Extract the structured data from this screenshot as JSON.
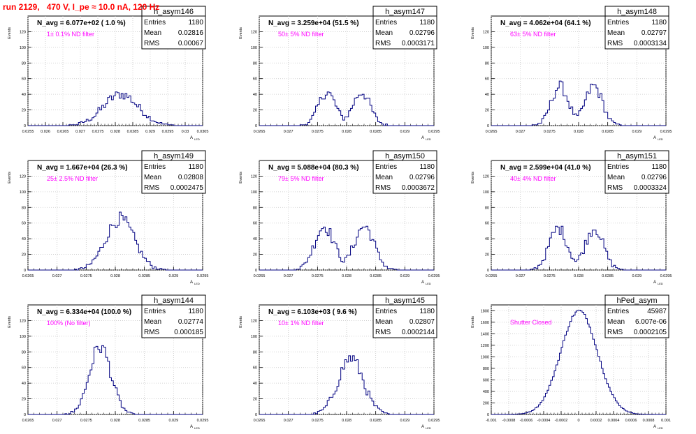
{
  "title": "run 2129,   470 V, I_pe ≈ 10.0 nA, 120 Hz",
  "colors": {
    "hist": "#000080",
    "annotation": "#ff00ff",
    "title": "#ff0000",
    "grid": "#c8c8c8"
  },
  "ylabel": "Events",
  "xlabel": "A",
  "xlabel_sub": "LED",
  "stat_labels": {
    "entries": "Entries",
    "mean": "Mean",
    "rms": "RMS"
  },
  "chart_data": [
    {
      "type": "bar",
      "name": "h_asym146",
      "navg": "N_avg = 6.077e+02 ( 1.0 %)",
      "annotation": "1± 0.1% ND filter",
      "stats": {
        "entries": "1180",
        "mean": "0.02816",
        "rms": "0.00067"
      },
      "xlim": [
        0.0255,
        0.0305
      ],
      "ylim": [
        0,
        140
      ],
      "xticks": [
        "0.0255",
        "0.026",
        "0.0265",
        "0.027",
        "0.0275",
        "0.028",
        "0.0285",
        "0.029",
        "0.0295",
        "0.03",
        "0.0305"
      ],
      "yticks": [
        "0",
        "20",
        "40",
        "60",
        "80",
        "100",
        "120"
      ],
      "hist_mean": 0.02816,
      "hist_sigma": 0.00067,
      "hist_peak": 40,
      "hist_shape": "broad",
      "bins": 90
    },
    {
      "type": "bar",
      "name": "h_asym147",
      "navg": "N_avg = 3.259e+04 (51.5 %)",
      "annotation": "50± 5% ND filter",
      "stats": {
        "entries": "1180",
        "mean": "0.02796",
        "rms": "0.0003171"
      },
      "xlim": [
        0.0265,
        0.0295
      ],
      "ylim": [
        0,
        140
      ],
      "xticks": [
        "0.0265",
        "0.027",
        "0.0275",
        "0.028",
        "0.0285",
        "0.029",
        "0.0295"
      ],
      "yticks": [
        "0",
        "20",
        "40",
        "60",
        "80",
        "100",
        "120"
      ],
      "hist_mean": 0.02796,
      "hist_sigma": 0.000317,
      "hist_peak": 42,
      "hist_shape": "double",
      "bins": 90
    },
    {
      "type": "bar",
      "name": "h_asym148",
      "navg": "N_avg = 4.062e+04 (64.1 %)",
      "annotation": "63± 5% ND filter",
      "stats": {
        "entries": "1180",
        "mean": "0.02797",
        "rms": "0.0003134"
      },
      "xlim": [
        0.0265,
        0.0295
      ],
      "ylim": [
        0,
        140
      ],
      "xticks": [
        "0.0265",
        "0.027",
        "0.0275",
        "0.028",
        "0.0285",
        "0.029",
        "0.0295"
      ],
      "yticks": [
        "0",
        "20",
        "40",
        "60",
        "80",
        "100",
        "120"
      ],
      "hist_mean": 0.02797,
      "hist_sigma": 0.000313,
      "hist_peak": 50,
      "hist_shape": "double",
      "bins": 90
    },
    {
      "type": "bar",
      "name": "h_asym149",
      "navg": "N_avg = 1.667e+04 (26.3 %)",
      "annotation": "25± 2.5% ND filter",
      "stats": {
        "entries": "1180",
        "mean": "0.02808",
        "rms": "0.0002475"
      },
      "xlim": [
        0.0265,
        0.0295
      ],
      "ylim": [
        0,
        140
      ],
      "xticks": [
        "0.0265",
        "0.027",
        "0.0275",
        "0.028",
        "0.0285",
        "0.029",
        "0.0295"
      ],
      "yticks": [
        "0",
        "20",
        "40",
        "60",
        "80",
        "100",
        "120"
      ],
      "hist_mean": 0.02808,
      "hist_sigma": 0.000247,
      "hist_peak": 65,
      "hist_shape": "single",
      "bins": 90
    },
    {
      "type": "bar",
      "name": "h_asym150",
      "navg": "N_avg = 5.088e+04 (80.3 %)",
      "annotation": "79± 5% ND filter",
      "stats": {
        "entries": "1180",
        "mean": "0.02796",
        "rms": "0.0003672"
      },
      "xlim": [
        0.0265,
        0.0295
      ],
      "ylim": [
        0,
        140
      ],
      "xticks": [
        "0.0265",
        "0.027",
        "0.0275",
        "0.028",
        "0.0285",
        "0.029",
        "0.0295"
      ],
      "yticks": [
        "0",
        "20",
        "40",
        "60",
        "80",
        "100",
        "120"
      ],
      "hist_mean": 0.02796,
      "hist_sigma": 0.000367,
      "hist_peak": 55,
      "hist_shape": "double",
      "bins": 90
    },
    {
      "type": "bar",
      "name": "h_asym151",
      "navg": "N_avg = 2.599e+04 (41.0 %)",
      "annotation": "40± 4% ND filter",
      "stats": {
        "entries": "1180",
        "mean": "0.02796",
        "rms": "0.0003324"
      },
      "xlim": [
        0.0265,
        0.0295
      ],
      "ylim": [
        0,
        140
      ],
      "xticks": [
        "0.0265",
        "0.027",
        "0.0275",
        "0.028",
        "0.0285",
        "0.029",
        "0.0295"
      ],
      "yticks": [
        "0",
        "20",
        "40",
        "60",
        "80",
        "100",
        "120"
      ],
      "hist_mean": 0.02796,
      "hist_sigma": 0.000332,
      "hist_peak": 53,
      "hist_shape": "double",
      "bins": 90
    },
    {
      "type": "bar",
      "name": "h_asym144",
      "navg": "N_avg = 6.334e+04 (100.0 %)",
      "annotation": "100% (No filter)",
      "stats": {
        "entries": "1180",
        "mean": "0.02774",
        "rms": "0.000185"
      },
      "xlim": [
        0.0265,
        0.0295
      ],
      "ylim": [
        0,
        140
      ],
      "xticks": [
        "0.0265",
        "0.027",
        "0.0275",
        "0.028",
        "0.0285",
        "0.029",
        "0.0295"
      ],
      "yticks": [
        "0",
        "20",
        "40",
        "60",
        "80",
        "100",
        "120"
      ],
      "hist_mean": 0.02774,
      "hist_sigma": 0.000185,
      "hist_peak": 87,
      "hist_shape": "single",
      "bins": 90
    },
    {
      "type": "bar",
      "name": "h_asym145",
      "navg": "N_avg = 6.103e+03 ( 9.6 %)",
      "annotation": "10± 1% ND filter",
      "stats": {
        "entries": "1180",
        "mean": "0.02807",
        "rms": "0.0002144"
      },
      "xlim": [
        0.0265,
        0.0295
      ],
      "ylim": [
        0,
        140
      ],
      "xticks": [
        "0.0265",
        "0.027",
        "0.0275",
        "0.028",
        "0.0285",
        "0.029",
        "0.0295"
      ],
      "yticks": [
        "0",
        "20",
        "40",
        "60",
        "80",
        "100",
        "120"
      ],
      "hist_mean": 0.02807,
      "hist_sigma": 0.000214,
      "hist_peak": 72,
      "hist_shape": "single",
      "bins": 90
    },
    {
      "type": "bar",
      "name": "hPed_asym",
      "navg": "",
      "annotation": "Shutter Closed",
      "stats": {
        "entries": "45987",
        "mean": "6.007e-06",
        "rms": "0.0002105"
      },
      "xlim": [
        -0.001,
        0.001
      ],
      "ylim": [
        0,
        1900
      ],
      "xticks": [
        "-0.001",
        "-0.0008",
        "-0.0006",
        "-0.0004",
        "-0.0002",
        "0",
        "0.0002",
        "0.0004",
        "0.0006",
        "0.0008",
        "0.001"
      ],
      "yticks": [
        "0",
        "200",
        "400",
        "600",
        "800",
        "1000",
        "1200",
        "1400",
        "1600",
        "1800"
      ],
      "hist_mean": 6e-06,
      "hist_sigma": 0.00021,
      "hist_peak": 1800,
      "hist_shape": "single",
      "bins": 100
    }
  ]
}
